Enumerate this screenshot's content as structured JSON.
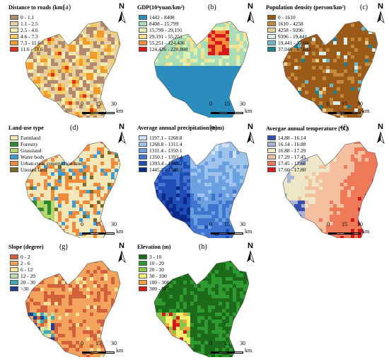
{
  "panels": [
    {
      "letter": "(a)",
      "title": "Distance to roads (km)",
      "legend": [
        {
          "label": "0 - 1.1",
          "color": "#b28a6b"
        },
        {
          "label": "1.1 - 2.5",
          "color": "#e7cfa4"
        },
        {
          "label": "2.5 - 4.6",
          "color": "#f7ebb1"
        },
        {
          "label": "4.6 - 7.3",
          "color": "#f5cc63"
        },
        {
          "label": "7.3 - 11.6",
          "color": "#f39a2c"
        },
        {
          "label": "11.6 - 18.6",
          "color": "#e4301a"
        }
      ],
      "north": "N",
      "scale": {
        "labels": [
          "0",
          "15",
          "30"
        ],
        "unit": "km"
      }
    },
    {
      "letter": "(b)",
      "title": "GDP(10⁴yuan/km²)",
      "legend": [
        {
          "label": "1442 - 8408",
          "color": "#2b8cbe"
        },
        {
          "label": "8408 - 15,799",
          "color": "#a8ddb5"
        },
        {
          "label": "15,799 - 29,191",
          "color": "#ddf1b4"
        },
        {
          "label": "29,191 - 55,251",
          "color": "#fee08b"
        },
        {
          "label": "55,251 - 124,436",
          "color": "#fb8d3d"
        },
        {
          "label": "124,436 - 228,808",
          "color": "#d7191c"
        }
      ],
      "north": "N",
      "scale": {
        "labels": [
          "0",
          "15",
          "30"
        ],
        "unit": "km"
      }
    },
    {
      "letter": "(c)",
      "title": "Population density (person/km²)",
      "legend": [
        {
          "label": "0 - 1610",
          "color": "#9c5a18"
        },
        {
          "label": "1610 - 4258",
          "color": "#c38a3c"
        },
        {
          "label": "4258 - 9396",
          "color": "#e6cf96"
        },
        {
          "label": "9396 - 19,441",
          "color": "#d6eef0"
        },
        {
          "label": "19,441 - 37,046",
          "color": "#6fb9c7"
        },
        {
          "label": "37,046 - 67,612",
          "color": "#1a7f8e"
        }
      ],
      "north": "N",
      "scale": {
        "labels": [
          "0",
          "15",
          "30"
        ],
        "unit": "km"
      }
    },
    {
      "letter": "(d)",
      "title": "Land-use type",
      "legend": [
        {
          "label": "Farmland",
          "color": "#f3e7b7"
        },
        {
          "label": "Forestry",
          "color": "#2f8a2f"
        },
        {
          "label": "Grassland",
          "color": "#b5d76a"
        },
        {
          "label": "Water body",
          "color": "#3d9cd6"
        },
        {
          "label": "Urban-rural construction land",
          "color": "#f08a3c"
        },
        {
          "label": "Unused land",
          "color": "#7a6b23"
        }
      ],
      "north": "N",
      "scale": {
        "labels": [
          "0",
          "15",
          "30"
        ],
        "unit": "km"
      }
    },
    {
      "letter": "(e)",
      "title": "Average annual precipitation (mm)",
      "legend": [
        {
          "label": "1197.1 - 1268.8",
          "color": "#cfe2f6"
        },
        {
          "label": "1268.8 - 1311.4",
          "color": "#9ec3ec"
        },
        {
          "label": "1311.4 - 1350.1",
          "color": "#6a9fe0"
        },
        {
          "label": "1350.1 - 1393.4",
          "color": "#3f74d0"
        },
        {
          "label": "1393.4 - 1445.2",
          "color": "#1f4db8"
        },
        {
          "label": "1445.2 - 1548.2",
          "color": "#0d2a8a"
        }
      ],
      "north": "N",
      "scale": {
        "labels": [
          "0",
          "15",
          "30"
        ],
        "unit": "km"
      }
    },
    {
      "letter": "(f)",
      "title": "Avergae annual temperature (⁰C)",
      "legend": [
        {
          "label": "14.88 - 16.14",
          "color": "#3552b0"
        },
        {
          "label": "16.14 - 16.88",
          "color": "#a8b4d6"
        },
        {
          "label": "16.88 - 17.29",
          "color": "#ede7c8"
        },
        {
          "label": "17.29 - 17.45",
          "color": "#f5c0a0"
        },
        {
          "label": "17.45 - 17.60",
          "color": "#ee7a5a"
        },
        {
          "label": "17.60 - 17.80",
          "color": "#d7191c"
        }
      ],
      "north": "N",
      "scale": {
        "labels": [
          "0",
          "15",
          "30"
        ],
        "unit": "km"
      }
    },
    {
      "letter": "(g)",
      "title": "Slope (degree)",
      "legend": [
        {
          "label": "0 - 2",
          "color": "#d2603b"
        },
        {
          "label": "2 - 6",
          "color": "#f3a35b"
        },
        {
          "label": "6 - 12",
          "color": "#f7e39a"
        },
        {
          "label": "12 - 20",
          "color": "#b7e0a9"
        },
        {
          "label": "20 - 30",
          "color": "#3fa9b4"
        },
        {
          "label": ">30",
          "color": "#1f3f94"
        }
      ],
      "north": "N",
      "scale": {
        "labels": [
          "0",
          "15",
          "30"
        ],
        "unit": "km"
      }
    },
    {
      "letter": "(h)",
      "title": "Elevation (m)",
      "legend": [
        {
          "label": "3 - 10",
          "color": "#1b6b1b"
        },
        {
          "label": "10 - 20",
          "color": "#2f9a2f"
        },
        {
          "label": "20 - 30",
          "color": "#87c743"
        },
        {
          "label": "30 - 100",
          "color": "#f6f06a"
        },
        {
          "label": "100 - 300",
          "color": "#f6a33b"
        },
        {
          "label": "300 - 585",
          "color": "#d7191c"
        }
      ],
      "north": "N",
      "scale": {
        "labels": [
          "0",
          "15",
          "30"
        ],
        "unit": "km"
      }
    }
  ]
}
